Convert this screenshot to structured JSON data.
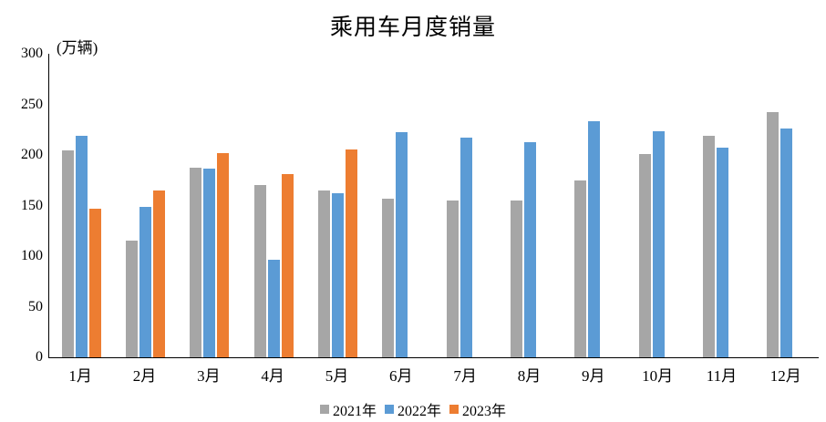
{
  "title": "乘用车月度销量",
  "y_axis_unit": "(万辆)",
  "chart_data": {
    "type": "bar",
    "title": "乘用车月度销量",
    "ylabel": "(万辆)",
    "categories": [
      "1月",
      "2月",
      "3月",
      "4月",
      "5月",
      "6月",
      "7月",
      "8月",
      "9月",
      "10月",
      "11月",
      "12月"
    ],
    "series": [
      {
        "name": "2021年",
        "color": "#A6A6A6",
        "values": [
          204.5,
          115.6,
          187.4,
          170.4,
          164.6,
          156.9,
          155.1,
          155.2,
          175.1,
          200.7,
          219.2,
          242.2
        ]
      },
      {
        "name": "2022年",
        "color": "#5B9BD5",
        "values": [
          218.6,
          148.7,
          186.4,
          96.5,
          162.3,
          222.2,
          217.4,
          212.5,
          233.2,
          223.1,
          207.5,
          226.3
        ]
      },
      {
        "name": "2023年",
        "color": "#ED7D31",
        "values": [
          146.9,
          165.3,
          201.7,
          181.1,
          205.1,
          null,
          null,
          null,
          null,
          null,
          null,
          null
        ]
      }
    ],
    "ylim": [
      0,
      300
    ],
    "yticks": [
      0,
      50,
      100,
      150,
      200,
      250,
      300
    ],
    "grid": false,
    "legend_position": "bottom",
    "axis_color": "#000000"
  }
}
